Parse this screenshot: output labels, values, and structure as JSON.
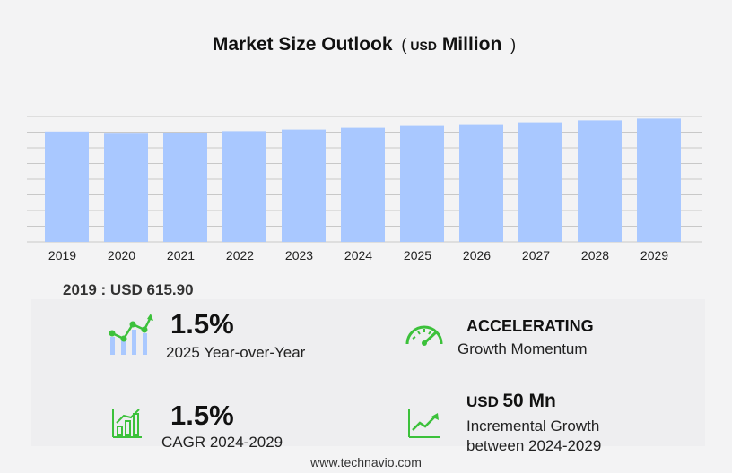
{
  "header": {
    "title_main": "Market Size Outlook",
    "title_open": "(",
    "title_unit": "USD",
    "title_scale": "Million",
    "title_close": ")"
  },
  "chart_data": {
    "type": "bar",
    "categories": [
      "2019",
      "2020",
      "2021",
      "2022",
      "2023",
      "2024",
      "2025",
      "2026",
      "2027",
      "2028",
      "2029"
    ],
    "values": [
      615.9,
      604.0,
      609.0,
      618.0,
      627.0,
      637.0,
      647.0,
      657.0,
      667.0,
      678.0,
      688.0
    ],
    "ylim": [
      0,
      700
    ],
    "grid": true,
    "bar_color": "#a9c8ff",
    "gridline_color": "#c8c8c8",
    "title": "Market Size Outlook",
    "xlabel": "",
    "ylabel": ""
  },
  "base": {
    "text": "2019 : USD  615.90"
  },
  "stats": {
    "yoy": {
      "value": "1.5%",
      "label": "2025 Year-over-Year"
    },
    "momentum": {
      "value": "ACCELERATING",
      "label": "Growth Momentum"
    },
    "cagr": {
      "value": "1.5%",
      "label": "CAGR 2024-2029"
    },
    "incremental": {
      "unit": "USD",
      "value": "50 Mn",
      "label_line1": "Incremental Growth",
      "label_line2": "between 2024-2029"
    }
  },
  "footer": {
    "text": "www.technavio.com"
  },
  "colors": {
    "icon_green": "#3cc13b",
    "icon_blue": "#a9c8ff",
    "background": "#f3f3f4"
  },
  "icons": [
    "growth-chart-icon",
    "speedometer-icon",
    "bar-growth-icon",
    "trend-line-icon"
  ]
}
